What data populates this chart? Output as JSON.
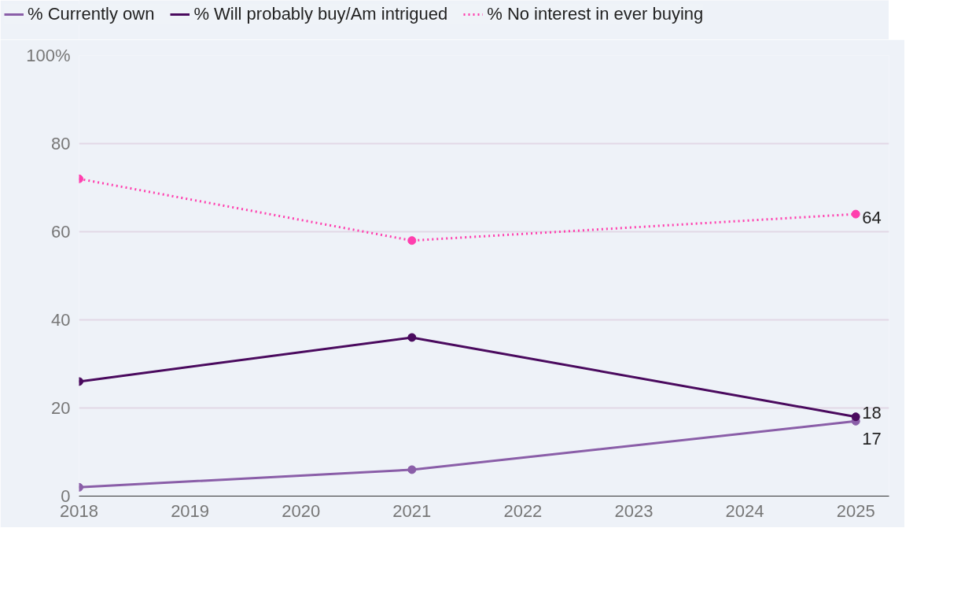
{
  "chart_data": {
    "type": "line",
    "x": [
      2018,
      2021,
      2025
    ],
    "series": [
      {
        "name": "% Currently own",
        "color": "#8a5ea8",
        "values": [
          2,
          6,
          17
        ],
        "value_labels": [
          null,
          null,
          "17"
        ],
        "line_style": "solid"
      },
      {
        "name": "% Will probably buy/Am intrigued",
        "color": "#4a0a5e",
        "values": [
          26,
          36,
          18
        ],
        "value_labels": [
          null,
          null,
          "18"
        ],
        "line_style": "solid"
      },
      {
        "name": "% No interest in ever buying",
        "color": "#ff3fae",
        "values": [
          72,
          58,
          64
        ],
        "value_labels": [
          null,
          null,
          "64"
        ],
        "line_style": "dotted"
      }
    ],
    "xlim": [
      2018,
      2025.3
    ],
    "xticks": [
      2018,
      2019,
      2020,
      2021,
      2022,
      2023,
      2024,
      2025
    ],
    "ylim": [
      0,
      100
    ],
    "yticks": [
      0,
      20,
      40,
      60,
      80,
      {
        "value": 100,
        "label": "100%"
      }
    ],
    "grid": "y",
    "legend": "top",
    "marker": "circle"
  }
}
